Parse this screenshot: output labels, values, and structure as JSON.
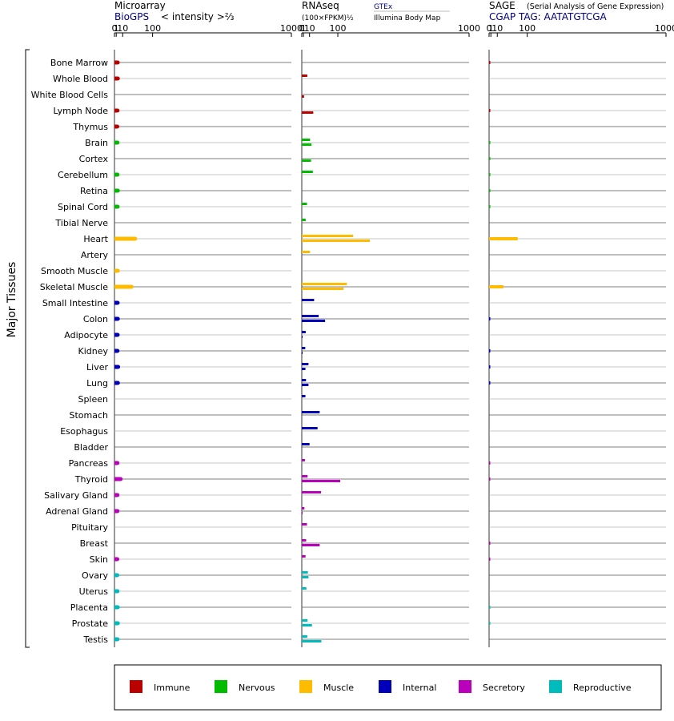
{
  "section_label": "Major Tissues",
  "panels": [
    {
      "id": "microarray",
      "title": "Microarray",
      "source": "BioGPS",
      "unit_label": "< intensity >⅔"
    },
    {
      "id": "rnaseq",
      "title": "RNAseq",
      "unit_label": "(100×FPKM)½",
      "source_a": "GTEx",
      "source_b": "Illumina Body Map"
    },
    {
      "id": "sage",
      "title": "SAGE",
      "subtitle": "(Serial Analysis of Gene Expression)",
      "source": "CGAP TAG: AATATGTCGA"
    }
  ],
  "axis_ticks": [
    "0",
    "1",
    "10",
    "100",
    "1000"
  ],
  "categories": {
    "Immune": {
      "color": "#bb0000"
    },
    "Nervous": {
      "color": "#00bb00"
    },
    "Muscle": {
      "color": "#ffbb00"
    },
    "Internal": {
      "color": "#0000bb"
    },
    "Secretory": {
      "color": "#bb00bb"
    },
    "Reproductive": {
      "color": "#00bbbb"
    }
  },
  "legend": [
    "Immune",
    "Nervous",
    "Muscle",
    "Internal",
    "Secretory",
    "Reproductive"
  ],
  "chart_data": {
    "type": "bar",
    "scale": "power-2/3 style (ticks at 0, 1, 10, 100, 1000)",
    "axis_range": [
      0,
      1000
    ],
    "orientation": "horizontal",
    "tissues": [
      {
        "name": "Bone Marrow",
        "category": "Immune",
        "microarray": 2.5,
        "gtex": null,
        "ibm": null,
        "sage": 0.02
      },
      {
        "name": "Whole Blood",
        "category": "Immune",
        "microarray": 2.6,
        "gtex": 6.0,
        "ibm": null,
        "sage": null
      },
      {
        "name": "White Blood Cells",
        "category": "Immune",
        "microarray": null,
        "gtex": null,
        "ibm": 1.6,
        "sage": null
      },
      {
        "name": "Lymph Node",
        "category": "Immune",
        "microarray": 2.2,
        "gtex": null,
        "ibm": 18.0,
        "sage": 0.02
      },
      {
        "name": "Thymus",
        "category": "Immune",
        "microarray": 2.0,
        "gtex": null,
        "ibm": null,
        "sage": null
      },
      {
        "name": "Brain",
        "category": "Nervous",
        "microarray": 2.2,
        "gtex": 11.0,
        "ibm": 14.0,
        "sage": 0.01
      },
      {
        "name": "Cortex",
        "category": "Nervous",
        "microarray": null,
        "gtex": null,
        "ibm": 13.0,
        "sage": 0.01
      },
      {
        "name": "Cerebellum",
        "category": "Nervous",
        "microarray": 2.2,
        "gtex": 17.0,
        "ibm": null,
        "sage": 0.01
      },
      {
        "name": "Retina",
        "category": "Nervous",
        "microarray": 2.6,
        "gtex": null,
        "ibm": null,
        "sage": 0.01
      },
      {
        "name": "Spinal Cord",
        "category": "Nervous",
        "microarray": 2.4,
        "gtex": 5.5,
        "ibm": null,
        "sage": 0.01
      },
      {
        "name": "Tibial Nerve",
        "category": "Nervous",
        "microarray": null,
        "gtex": 3.6,
        "ibm": null,
        "sage": null
      },
      {
        "name": "Heart",
        "category": "Muscle",
        "microarray": 40.0,
        "gtex": 170.0,
        "ibm": 260.0,
        "sage": 65.0
      },
      {
        "name": "Artery",
        "category": "Muscle",
        "microarray": null,
        "gtex": 11.0,
        "ibm": null,
        "sage": null
      },
      {
        "name": "Smooth Muscle",
        "category": "Muscle",
        "microarray": 2.6,
        "gtex": null,
        "ibm": null,
        "sage": null
      },
      {
        "name": "Skeletal Muscle",
        "category": "Muscle",
        "microarray": 30.0,
        "gtex": 140.0,
        "ibm": 125.0,
        "sage": 23.0
      },
      {
        "name": "Small Intestine",
        "category": "Internal",
        "microarray": 2.4,
        "gtex": 20.0,
        "ibm": null,
        "sage": null
      },
      {
        "name": "Colon",
        "category": "Internal",
        "microarray": 2.6,
        "gtex": 32.0,
        "ibm": 52.0,
        "sage": 0.02
      },
      {
        "name": "Adipocyte",
        "category": "Internal",
        "microarray": 2.4,
        "gtex": 3.6,
        "ibm": 0.02,
        "sage": null
      },
      {
        "name": "Kidney",
        "category": "Internal",
        "microarray": 2.2,
        "gtex": 3.0,
        "ibm": 0.02,
        "sage": 0.02
      },
      {
        "name": "Liver",
        "category": "Internal",
        "microarray": 3.0,
        "gtex": 8.0,
        "ibm": 3.2,
        "sage": 0.02
      },
      {
        "name": "Lung",
        "category": "Internal",
        "microarray": 2.7,
        "gtex": 4.0,
        "ibm": 8.0,
        "sage": 0.02
      },
      {
        "name": "Spleen",
        "category": "Internal",
        "microarray": null,
        "gtex": 3.2,
        "ibm": null,
        "sage": null
      },
      {
        "name": "Stomach",
        "category": "Internal",
        "microarray": null,
        "gtex": 35.0,
        "ibm": null,
        "sage": null
      },
      {
        "name": "Esophagus",
        "category": "Internal",
        "microarray": null,
        "gtex": 29.0,
        "ibm": null,
        "sage": null
      },
      {
        "name": "Bladder",
        "category": "Internal",
        "microarray": null,
        "gtex": 10.0,
        "ibm": null,
        "sage": null
      },
      {
        "name": "Pancreas",
        "category": "Secretory",
        "microarray": 2.2,
        "gtex": 2.6,
        "ibm": null,
        "sage": 0.02
      },
      {
        "name": "Thyroid",
        "category": "Secretory",
        "microarray": 6.5,
        "gtex": 6.5,
        "ibm": 110.0,
        "sage": 0.02
      },
      {
        "name": "Salivary Gland",
        "category": "Secretory",
        "microarray": 2.2,
        "gtex": 39.0,
        "ibm": null,
        "sage": null
      },
      {
        "name": "Adrenal Gland",
        "category": "Secretory",
        "microarray": 2.2,
        "gtex": 2.0,
        "ibm": 0.02,
        "sage": null
      },
      {
        "name": "Pituitary",
        "category": "Secretory",
        "microarray": null,
        "gtex": 5.5,
        "ibm": null,
        "sage": null
      },
      {
        "name": "Breast",
        "category": "Secretory",
        "microarray": null,
        "gtex": 4.2,
        "ibm": 35.0,
        "sage": 0.02
      },
      {
        "name": "Skin",
        "category": "Secretory",
        "microarray": 2.0,
        "gtex": 3.4,
        "ibm": null,
        "sage": 0.02
      },
      {
        "name": "Ovary",
        "category": "Reproductive",
        "microarray": 2.0,
        "gtex": 7.0,
        "ibm": 8.0,
        "sage": null
      },
      {
        "name": "Uterus",
        "category": "Reproductive",
        "microarray": 2.2,
        "gtex": 4.6,
        "ibm": null,
        "sage": null
      },
      {
        "name": "Placenta",
        "category": "Reproductive",
        "microarray": 2.5,
        "gtex": null,
        "ibm": null,
        "sage": 0.01
      },
      {
        "name": "Prostate",
        "category": "Reproductive",
        "microarray": 2.6,
        "gtex": 6.5,
        "ibm": 15.0,
        "sage": 0.01
      },
      {
        "name": "Testis",
        "category": "Reproductive",
        "microarray": 2.2,
        "gtex": 6.0,
        "ibm": 40.0,
        "sage": null
      }
    ]
  }
}
